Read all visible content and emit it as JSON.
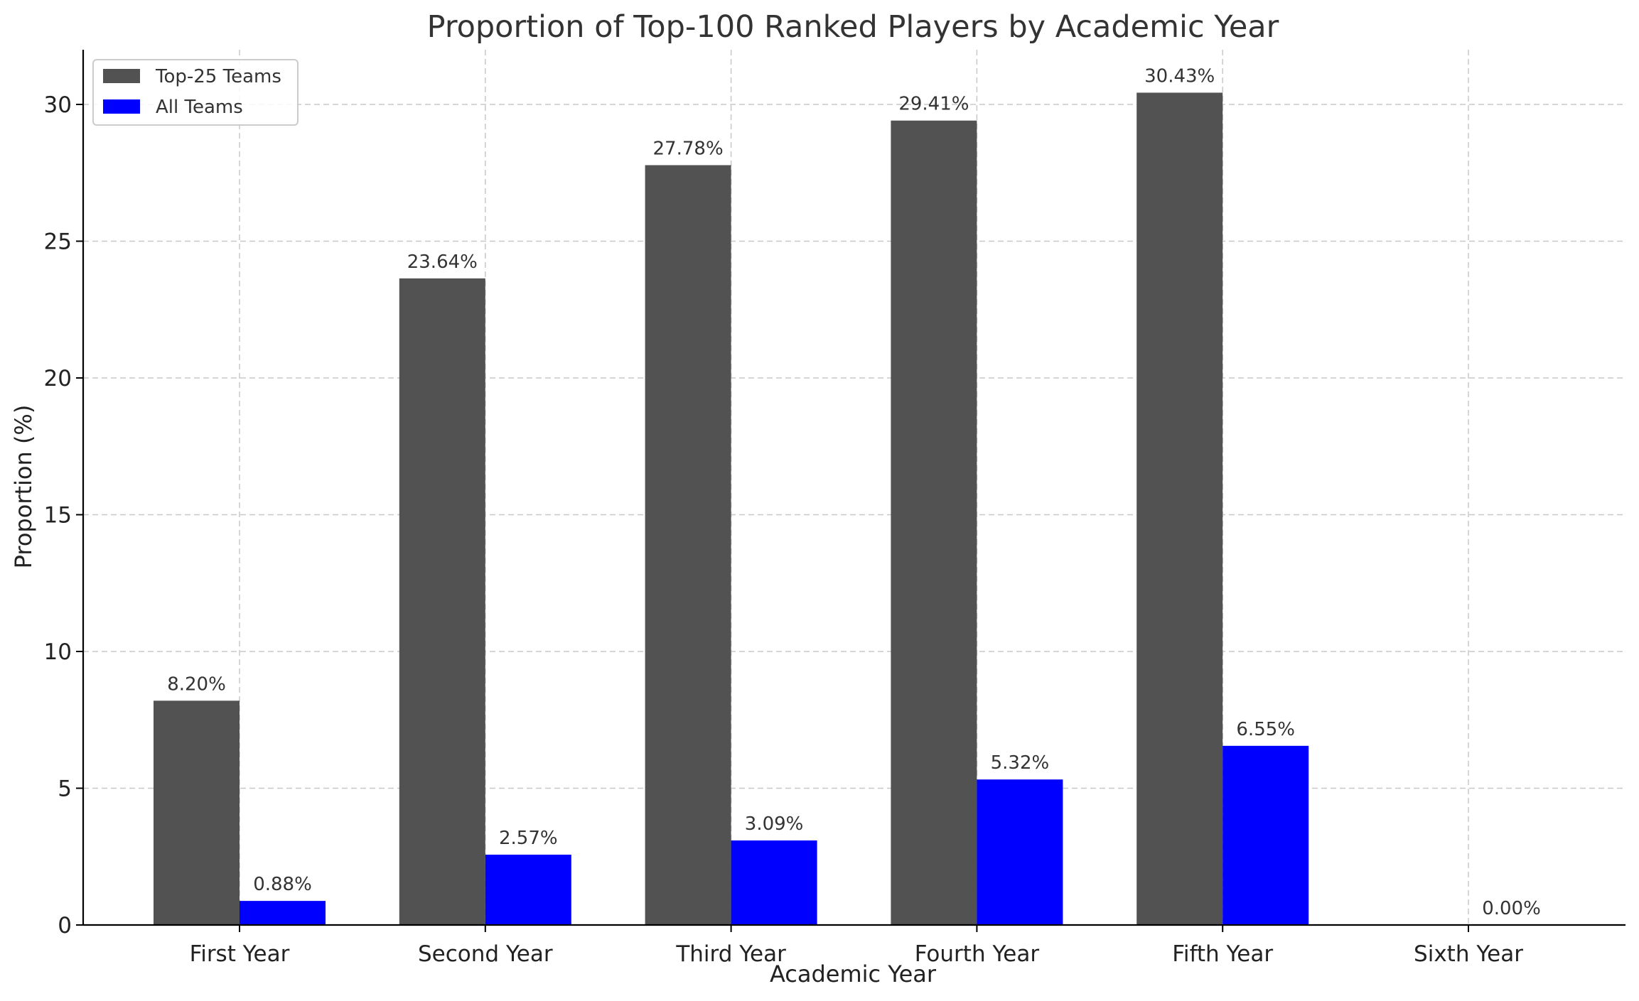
{
  "chart_data": {
    "type": "bar",
    "title": "Proportion of Top-100 Ranked Players by Academic Year",
    "xlabel": "Academic Year",
    "ylabel": "Proportion (%)",
    "categories": [
      "First Year",
      "Second Year",
      "Third Year",
      "Fourth Year",
      "Fifth Year",
      "Sixth Year"
    ],
    "series": [
      {
        "name": "Top-25 Teams",
        "color": "#525252",
        "values": [
          8.2,
          23.64,
          27.78,
          29.41,
          30.43,
          0.0
        ],
        "labels": [
          "8.20%",
          "23.64%",
          "27.78%",
          "29.41%",
          "30.43%",
          ""
        ]
      },
      {
        "name": "All Teams",
        "color": "#0000ff",
        "values": [
          0.88,
          2.57,
          3.09,
          5.32,
          6.55,
          0.0
        ],
        "labels": [
          "0.88%",
          "2.57%",
          "3.09%",
          "5.32%",
          "6.55%",
          "0.00%"
        ]
      }
    ],
    "ylim": [
      0,
      32
    ],
    "yticks": [
      0,
      5,
      10,
      15,
      20,
      25,
      30
    ],
    "grid": true,
    "legend_position": "top-left"
  }
}
